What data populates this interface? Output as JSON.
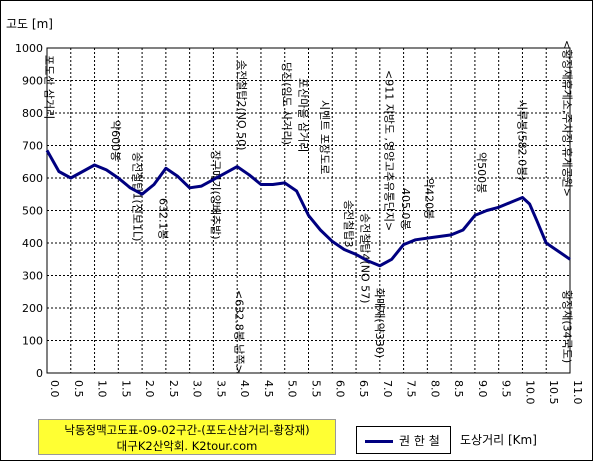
{
  "chart_data": {
    "type": "line",
    "title": "",
    "ylabel": "고도 [m]",
    "xlabel": "도상거리 [Km]",
    "ylim": [
      0,
      1000
    ],
    "xlim": [
      0,
      11
    ],
    "yticks": [
      0,
      100,
      200,
      300,
      400,
      500,
      600,
      700,
      800,
      900,
      1000
    ],
    "xticks": [
      "0.0",
      "0.5",
      "1.0",
      "1.5",
      "2.0",
      "2.5",
      "3.0",
      "3.5",
      "4.0",
      "4.5",
      "5.0",
      "5.5",
      "6.0",
      "6.5",
      "7.0",
      "7.5",
      "8.0",
      "8.5",
      "9.0",
      "9.5",
      "10.0",
      "10.5",
      "11.0"
    ],
    "grid": true,
    "legend": "bottom",
    "series": [
      {
        "name": "권 한 철",
        "color": "#000080",
        "x": [
          0.0,
          0.25,
          0.5,
          0.75,
          1.0,
          1.25,
          1.5,
          1.75,
          2.0,
          2.25,
          2.5,
          2.75,
          3.0,
          3.25,
          3.5,
          3.75,
          4.0,
          4.25,
          4.5,
          4.75,
          5.0,
          5.25,
          5.5,
          5.75,
          6.0,
          6.25,
          6.5,
          6.75,
          7.0,
          7.25,
          7.5,
          7.75,
          8.0,
          8.25,
          8.5,
          8.75,
          9.0,
          9.25,
          9.5,
          9.75,
          10.0,
          10.15,
          10.3,
          10.5,
          10.75,
          11.0
        ],
        "y": [
          685,
          620,
          600,
          620,
          640,
          625,
          600,
          570,
          550,
          580,
          630,
          605,
          570,
          575,
          595,
          615,
          635,
          610,
          580,
          580,
          585,
          560,
          485,
          440,
          405,
          380,
          365,
          345,
          330,
          350,
          395,
          410,
          415,
          420,
          425,
          440,
          485,
          500,
          510,
          525,
          540,
          520,
          470,
          400,
          375,
          350
        ]
      }
    ],
    "annotations": [
      {
        "text": "포도산 삼거리",
        "x": 0.05
      },
      {
        "text": "약600봉",
        "x": 1.45
      },
      {
        "text": "송전철탑1(진보1L)",
        "x": 1.9
      },
      {
        "text": "632.1봉",
        "x": 2.45
      },
      {
        "text": "장구메기(양배추밭)",
        "x": 3.55
      },
      {
        "text": "송전철탑2(NO 50)",
        "x": 4.1
      },
      {
        "text": "<632.8봉 남쪽>",
        "x": 4.05
      },
      {
        "text": "당진(임도 사거리)",
        "x": 5.05
      },
      {
        "text": "포산마을 삼거리",
        "x": 5.4
      },
      {
        "text": "시멘트 포장도로",
        "x": 5.85
      },
      {
        "text": "송전철탑3",
        "x": 6.35
      },
      {
        "text": "송전철탑4(NO 57)",
        "x": 6.7
      },
      {
        "text": "<911 지방도 ,영양고추유통단지>",
        "x": 7.2
      },
      {
        "text": "화매재(약330)",
        "x": 7.0
      },
      {
        "text": "405.0봉",
        "x": 7.55
      },
      {
        "text": "약420봉",
        "x": 8.05
      },
      {
        "text": "약500봉",
        "x": 9.15
      },
      {
        "text": "시루봉(582.0봉)",
        "x": 10.0
      },
      {
        "text": "<황장재휴게소,주차장,휴게공원>",
        "x": 10.95
      },
      {
        "text": "황장재(34국도)",
        "x": 10.95
      }
    ]
  },
  "caption": {
    "line1": "낙동정맥고도표-09-02구간-(포도산삼거리-황장재)",
    "line2": "대구K2산악회. K2tour.com"
  },
  "legend": {
    "label": "권 한 철"
  },
  "axis_unit_label": "도상거리 [Km]"
}
